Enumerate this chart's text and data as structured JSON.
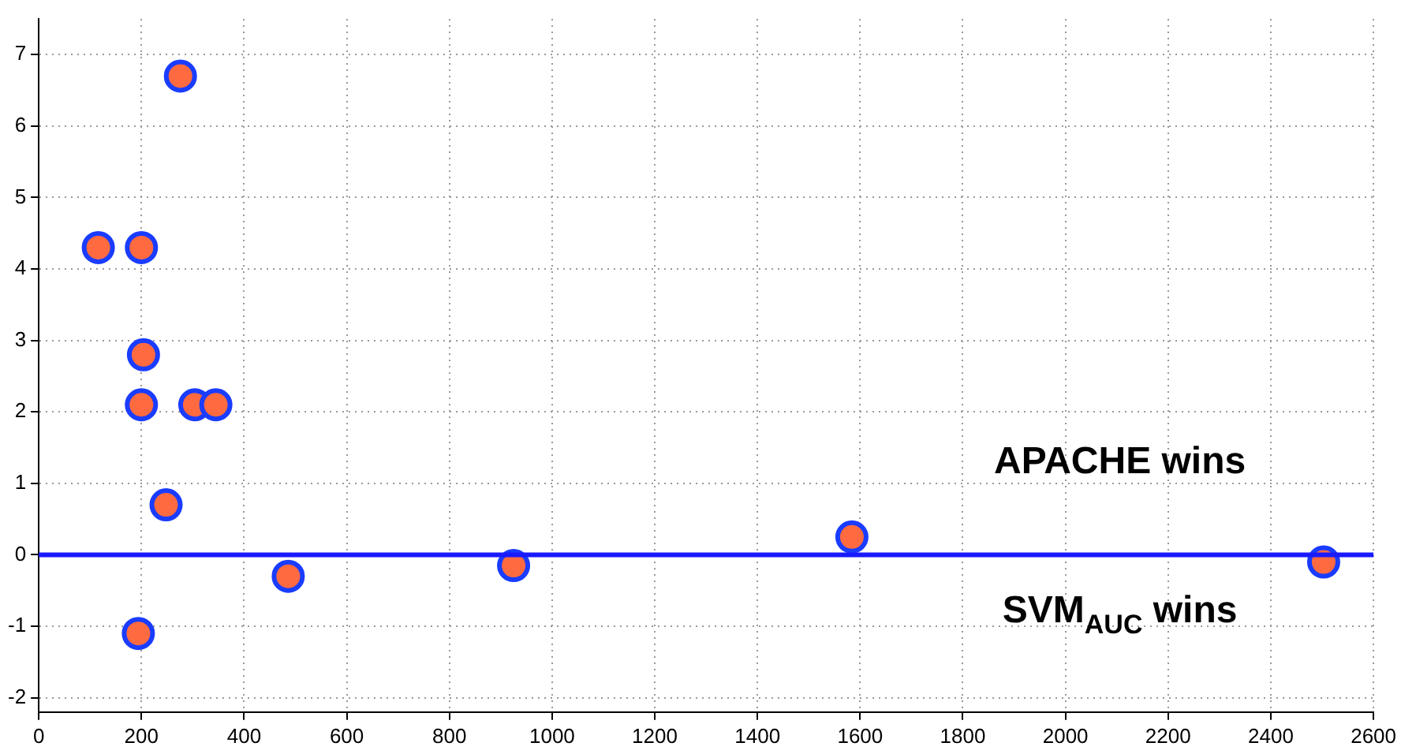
{
  "chart_data": {
    "type": "scatter",
    "x": [
      116,
      200,
      276,
      204,
      200,
      304,
      345,
      248,
      194,
      486,
      925,
      1584,
      2503
    ],
    "values": [
      4.3,
      4.3,
      6.7,
      2.8,
      2.1,
      2.1,
      2.1,
      0.7,
      -1.1,
      -0.3,
      -0.15,
      0.25,
      -0.1
    ],
    "color": "#ff6a40",
    "marker": "circle",
    "xlim": [
      0,
      2600
    ],
    "xticks": [
      0,
      200,
      400,
      600,
      800,
      1000,
      1200,
      1400,
      1600,
      1800,
      2000,
      2200,
      2400,
      2600
    ],
    "ylim": [
      -2.2,
      7.5
    ],
    "yticks": [
      -2,
      -1,
      0,
      1,
      2,
      3,
      4,
      5,
      6,
      7
    ],
    "grid": true,
    "ref_lines": [
      {
        "axis": "y",
        "value": 0,
        "color": "#1a1aff"
      }
    ],
    "annotations": [
      "APACHE wins",
      "SVM$_{AUC}$ wins"
    ]
  }
}
